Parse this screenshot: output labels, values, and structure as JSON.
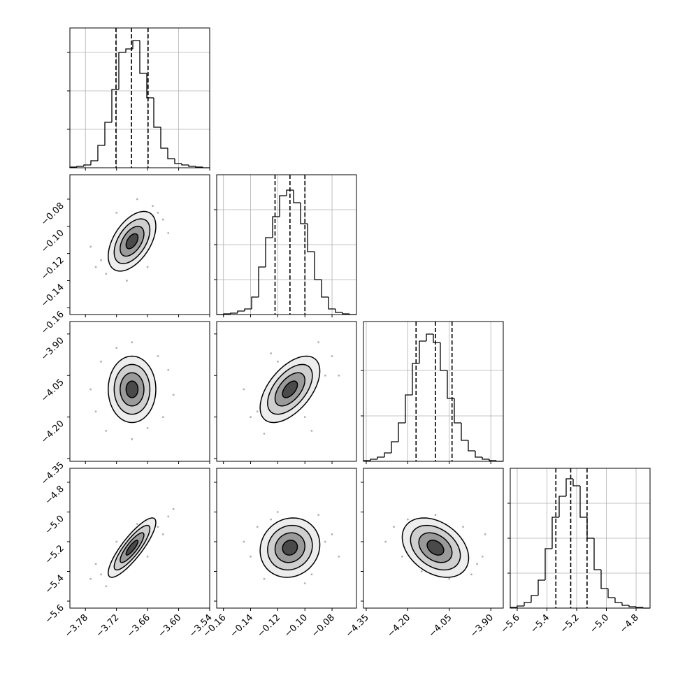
{
  "chart_data": {
    "type": "corner",
    "color": "#000000",
    "point_color": "#b0b0b0",
    "shades": [
      "#ededed",
      "#cfcfcf",
      "#9a9a9a",
      "#4a4a4a"
    ],
    "grid": true,
    "levels": [
      2,
      1.5,
      1,
      0.5
    ],
    "params": [
      {
        "lim": [
          -3.81,
          -3.54
        ],
        "ticks": [
          {
            "value": -3.78,
            "label": "−3.78"
          },
          {
            "value": -3.72,
            "label": "−3.72"
          },
          {
            "value": -3.66,
            "label": "−3.66"
          },
          {
            "value": -3.6,
            "label": "−3.60"
          },
          {
            "value": -3.54,
            "label": "−3.54"
          }
        ],
        "bins": [
          -3.81,
          -3.7965,
          -3.783,
          -3.7695,
          -3.756,
          -3.7425,
          -3.729,
          -3.7155,
          -3.702,
          -3.6885,
          -3.675,
          -3.6615,
          -3.648,
          -3.6345,
          -3.621,
          -3.6075,
          -3.594,
          -3.5805,
          -3.567,
          -3.5535,
          -3.54
        ],
        "counts": [
          1,
          2,
          4,
          10,
          32,
          65,
          112,
          165,
          170,
          182,
          135,
          100,
          58,
          28,
          13,
          6,
          4,
          2,
          1,
          0
        ],
        "hist_lim": [
          0,
          200
        ],
        "hist_ticks": [
          55,
          110,
          165
        ],
        "quantiles": [
          -3.721,
          -3.691,
          -3.659
        ],
        "mean": -3.69,
        "std": 0.023
      },
      {
        "lim": [
          -0.165,
          -0.062
        ],
        "ticks": [
          {
            "value": -0.16,
            "label": "−0.16"
          },
          {
            "value": -0.14,
            "label": "−0.14"
          },
          {
            "value": -0.12,
            "label": "−0.12"
          },
          {
            "value": -0.1,
            "label": "−0.10"
          },
          {
            "value": -0.08,
            "label": "−0.08"
          }
        ],
        "bins": [
          -0.165,
          -0.15985,
          -0.1547,
          -0.14955,
          -0.1444,
          -0.13925,
          -0.1341,
          -0.12895,
          -0.1238,
          -0.11865,
          -0.1135,
          -0.10835,
          -0.1032,
          -0.09805,
          -0.0929,
          -0.08775,
          -0.0826,
          -0.07745,
          -0.0723,
          -0.06715,
          -0.062
        ],
        "counts": [
          0,
          1,
          2,
          5,
          8,
          25,
          68,
          110,
          140,
          170,
          178,
          160,
          130,
          90,
          50,
          25,
          8,
          3,
          1,
          0
        ],
        "hist_lim": [
          0,
          200
        ],
        "hist_ticks": [
          50,
          100,
          150
        ],
        "quantiles": [
          -0.122,
          -0.111,
          -0.1
        ],
        "mean": -0.111,
        "std": 0.011
      },
      {
        "lim": [
          -4.36,
          -3.855
        ],
        "ticks": [
          {
            "value": -4.35,
            "label": "−4.35"
          },
          {
            "value": -4.2,
            "label": "−4.20"
          },
          {
            "value": -4.05,
            "label": "−4.05"
          },
          {
            "value": -3.9,
            "label": "−3.90"
          }
        ],
        "bins": [
          -4.36,
          -4.33475,
          -4.3095,
          -4.28425,
          -4.259,
          -4.23375,
          -4.2085,
          -4.18325,
          -4.158,
          -4.13275,
          -4.1075,
          -4.08225,
          -4.057,
          -4.03175,
          -4.0065,
          -3.98125,
          -3.956,
          -3.93075,
          -3.9055,
          -3.88025,
          -3.855
        ],
        "counts": [
          1,
          3,
          6,
          12,
          28,
          55,
          95,
          140,
          172,
          182,
          170,
          130,
          90,
          55,
          30,
          15,
          6,
          3,
          1,
          0
        ],
        "hist_lim": [
          0,
          200
        ],
        "hist_ticks": [
          65,
          130
        ],
        "quantiles": [
          -4.17,
          -4.1,
          -4.04
        ],
        "mean": -4.1,
        "std": 0.06
      },
      {
        "lim": [
          -5.647,
          -4.706
        ],
        "ticks": [
          {
            "value": -5.6,
            "label": "−5.6"
          },
          {
            "value": -5.4,
            "label": "−5.4"
          },
          {
            "value": -5.2,
            "label": "−5.2"
          },
          {
            "value": -5.0,
            "label": "−5.0"
          },
          {
            "value": -4.8,
            "label": "−4.8"
          }
        ],
        "bins": [
          -5.647,
          -5.59995,
          -5.5529,
          -5.50585,
          -5.4588,
          -5.41175,
          -5.3647,
          -5.31765,
          -5.2706,
          -5.22355,
          -5.1765,
          -5.12945,
          -5.0824,
          -5.03535,
          -4.9883,
          -4.94125,
          -4.8942,
          -4.84715,
          -4.8001,
          -4.75305,
          -4.706
        ],
        "counts": [
          1,
          3,
          8,
          18,
          40,
          85,
          130,
          160,
          185,
          175,
          130,
          100,
          55,
          28,
          15,
          8,
          4,
          2,
          1,
          0
        ],
        "hist_lim": [
          0,
          200
        ],
        "hist_ticks": [
          50,
          100,
          150
        ],
        "quantiles": [
          -5.34,
          -5.24,
          -5.13
        ],
        "mean": -5.24,
        "std": 0.1
      }
    ],
    "pairs": [
      {
        "rho": 0.5,
        "points": [
          [
            -3.75,
            -0.125
          ],
          [
            -3.74,
            -0.135
          ],
          [
            -3.64,
            -0.09
          ],
          [
            -3.63,
            -0.095
          ],
          [
            -3.72,
            -0.09
          ],
          [
            -3.66,
            -0.13
          ],
          [
            -3.77,
            -0.115
          ],
          [
            -3.62,
            -0.105
          ],
          [
            -3.7,
            -0.14
          ],
          [
            -3.68,
            -0.08
          ],
          [
            -3.76,
            -0.13
          ],
          [
            -3.65,
            -0.085
          ]
        ]
      },
      {
        "rho": 0.0,
        "points": [
          [
            -3.75,
            -4.0
          ],
          [
            -3.63,
            -4.2
          ],
          [
            -3.74,
            -4.25
          ],
          [
            -3.64,
            -3.98
          ],
          [
            -3.69,
            -3.93
          ],
          [
            -3.69,
            -4.28
          ],
          [
            -3.77,
            -4.1
          ],
          [
            -3.61,
            -4.12
          ],
          [
            -3.72,
            -3.95
          ],
          [
            -3.66,
            -4.24
          ],
          [
            -3.76,
            -4.18
          ],
          [
            -3.62,
            -4.03
          ]
        ]
      },
      {
        "rho": 0.55,
        "points": [
          [
            -0.14,
            -4.2
          ],
          [
            -0.13,
            -4.26
          ],
          [
            -0.08,
            -3.98
          ],
          [
            -0.09,
            -3.93
          ],
          [
            -0.12,
            -4.0
          ],
          [
            -0.1,
            -4.2
          ],
          [
            -0.145,
            -4.1
          ],
          [
            -0.075,
            -4.05
          ],
          [
            -0.125,
            -3.97
          ],
          [
            -0.095,
            -4.25
          ],
          [
            -0.135,
            -4.18
          ],
          [
            -0.085,
            -4.05
          ]
        ]
      },
      {
        "rho": 0.85,
        "points": [
          [
            -3.75,
            -5.42
          ],
          [
            -3.77,
            -5.45
          ],
          [
            -3.62,
            -5.03
          ],
          [
            -3.61,
            -4.98
          ],
          [
            -3.72,
            -5.2
          ],
          [
            -3.66,
            -5.3
          ],
          [
            -3.74,
            -5.5
          ],
          [
            -3.64,
            -5.1
          ],
          [
            -3.7,
            -5.38
          ],
          [
            -3.68,
            -5.08
          ],
          [
            -3.76,
            -5.35
          ],
          [
            -3.63,
            -5.15
          ]
        ]
      },
      {
        "rho": 0.1,
        "points": [
          [
            -0.14,
            -5.3
          ],
          [
            -0.13,
            -5.45
          ],
          [
            -0.08,
            -5.15
          ],
          [
            -0.09,
            -5.02
          ],
          [
            -0.12,
            -5.0
          ],
          [
            -0.1,
            -5.48
          ],
          [
            -0.145,
            -5.2
          ],
          [
            -0.075,
            -5.3
          ],
          [
            -0.125,
            -5.05
          ],
          [
            -0.095,
            -5.42
          ],
          [
            -0.135,
            -5.1
          ],
          [
            -0.085,
            -5.2
          ]
        ]
      },
      {
        "rho": -0.35,
        "points": [
          [
            -4.25,
            -5.1
          ],
          [
            -4.2,
            -5.05
          ],
          [
            -3.95,
            -5.35
          ],
          [
            -3.93,
            -5.3
          ],
          [
            -4.1,
            -5.02
          ],
          [
            -4.05,
            -5.45
          ],
          [
            -4.28,
            -5.2
          ],
          [
            -3.92,
            -5.15
          ],
          [
            -4.15,
            -5.4
          ],
          [
            -4.0,
            -5.1
          ],
          [
            -4.22,
            -5.3
          ],
          [
            -3.97,
            -5.42
          ]
        ]
      }
    ]
  }
}
